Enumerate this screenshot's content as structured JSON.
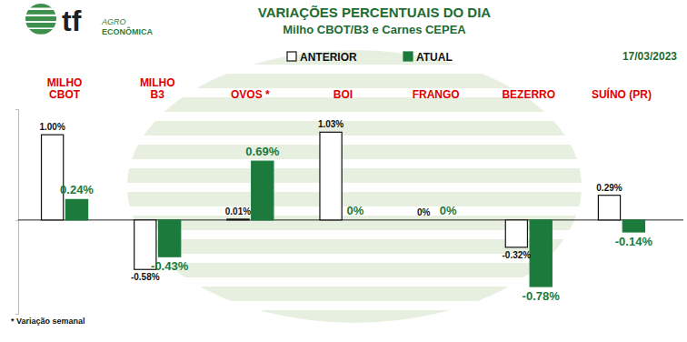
{
  "chart_data": {
    "type": "bar",
    "title": "VARIAÇÕES PERCENTUAIS DO DIA",
    "subtitle": "Milho CBOT/B3 e Carnes CEPEA",
    "date": "17/03/2023",
    "footnote": "* Variação semanal",
    "logo": [
      "tf",
      "AGRO",
      "ECONÔMICA"
    ],
    "categories": [
      "MILHO\nCBOT",
      "MILHO\nB3",
      "OVOS *",
      "BOI",
      "FRANGO",
      "BEZERRO",
      "SUÍNO (PR)"
    ],
    "series": [
      {
        "name": "ANTERIOR",
        "color": "#ffffff",
        "values": [
          1.0,
          -0.58,
          0.01,
          1.03,
          0,
          -0.32,
          0.29
        ],
        "value_labels": [
          "1.00%",
          "-0.58%",
          "0.01%",
          "1.03%",
          "0%",
          "-0.32%",
          "0.29%"
        ]
      },
      {
        "name": "ATUAL",
        "color": "#1b7a3c",
        "values": [
          0.24,
          -0.43,
          0.69,
          0,
          0,
          -0.78,
          -0.14
        ],
        "value_labels": [
          "0.24%",
          "-0.43%",
          "0.69%",
          "0%",
          "0%",
          "-0.78%",
          "-0.14%"
        ]
      }
    ],
    "ylim": [
      -1.1,
      1.3
    ],
    "yticks": [
      0
    ],
    "grid": true,
    "legend": "top",
    "data_labels": true,
    "tick_labels": false
  }
}
